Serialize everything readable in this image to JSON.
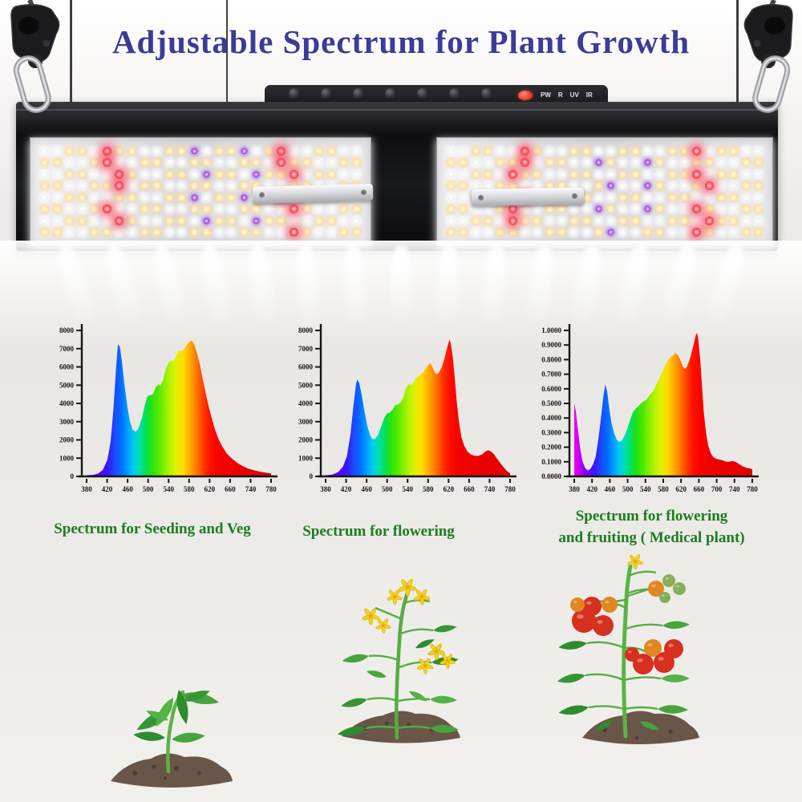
{
  "title": "Adjustable Spectrum for Plant Growth",
  "colors": {
    "title_text": "#3b3c96",
    "caption_text": "#1b7d1f",
    "background": "#eae8e4",
    "fixture_body": "#111113",
    "indicator_red": "#e23522"
  },
  "fixture": {
    "knob_count": 7,
    "control_labels": [
      "PW",
      "R",
      "UV",
      "IR"
    ],
    "hangers": "ratchet rope hangers with carabiners",
    "led_colors": [
      "warm-white",
      "white",
      "red",
      "uv-purple"
    ]
  },
  "illustrations": [
    "seedling-plant",
    "flowering-plant",
    "fruiting-tomato-plant"
  ],
  "chart_data": [
    {
      "type": "area",
      "caption": "Spectrum for Seeding and Veg",
      "ylim": [
        0,
        8000
      ],
      "y_tick_labels": [
        "0",
        "1000",
        "2000",
        "3000",
        "4000",
        "5000",
        "6000",
        "7000",
        "8000"
      ],
      "x_tick_labels": [
        "380",
        "420",
        "460",
        "500",
        "540",
        "580",
        "620",
        "660",
        "740",
        "780"
      ],
      "xlim": [
        380,
        780
      ],
      "points": [
        [
          380,
          60
        ],
        [
          395,
          90
        ],
        [
          405,
          160
        ],
        [
          415,
          350
        ],
        [
          425,
          900
        ],
        [
          432,
          1900
        ],
        [
          438,
          3600
        ],
        [
          444,
          6000
        ],
        [
          448,
          7250
        ],
        [
          452,
          7100
        ],
        [
          456,
          6400
        ],
        [
          462,
          5000
        ],
        [
          468,
          3900
        ],
        [
          474,
          3000
        ],
        [
          480,
          2550
        ],
        [
          486,
          2450
        ],
        [
          492,
          2600
        ],
        [
          500,
          3200
        ],
        [
          506,
          3900
        ],
        [
          512,
          4400
        ],
        [
          518,
          4450
        ],
        [
          524,
          4500
        ],
        [
          530,
          4900
        ],
        [
          536,
          5050
        ],
        [
          540,
          4950
        ],
        [
          546,
          5300
        ],
        [
          552,
          5900
        ],
        [
          558,
          6250
        ],
        [
          564,
          6350
        ],
        [
          568,
          6300
        ],
        [
          572,
          6500
        ],
        [
          578,
          6850
        ],
        [
          582,
          6900
        ],
        [
          586,
          6850
        ],
        [
          592,
          7000
        ],
        [
          598,
          7250
        ],
        [
          604,
          7400
        ],
        [
          608,
          7450
        ],
        [
          614,
          7200
        ],
        [
          620,
          6700
        ],
        [
          626,
          6100
        ],
        [
          632,
          5300
        ],
        [
          638,
          4600
        ],
        [
          644,
          3900
        ],
        [
          650,
          3300
        ],
        [
          658,
          2600
        ],
        [
          666,
          2050
        ],
        [
          674,
          1650
        ],
        [
          684,
          1250
        ],
        [
          694,
          1000
        ],
        [
          706,
          750
        ],
        [
          718,
          570
        ],
        [
          730,
          430
        ],
        [
          744,
          330
        ],
        [
          756,
          260
        ],
        [
          768,
          210
        ],
        [
          780,
          160
        ]
      ]
    },
    {
      "type": "area",
      "caption": "Spectrum for flowering",
      "ylim": [
        0,
        8000
      ],
      "y_tick_labels": [
        "0",
        "1000",
        "2000",
        "3000",
        "4000",
        "5000",
        "6000",
        "7000",
        "8000"
      ],
      "x_tick_labels": [
        "380",
        "420",
        "460",
        "500",
        "540",
        "580",
        "620",
        "660",
        "740",
        "780"
      ],
      "xlim": [
        380,
        780
      ],
      "points": [
        [
          380,
          60
        ],
        [
          395,
          100
        ],
        [
          408,
          250
        ],
        [
          418,
          550
        ],
        [
          426,
          1100
        ],
        [
          434,
          2300
        ],
        [
          440,
          3800
        ],
        [
          446,
          5100
        ],
        [
          449,
          5300
        ],
        [
          453,
          5100
        ],
        [
          458,
          4500
        ],
        [
          464,
          3600
        ],
        [
          470,
          2800
        ],
        [
          476,
          2300
        ],
        [
          481,
          2050
        ],
        [
          487,
          2050
        ],
        [
          493,
          2250
        ],
        [
          500,
          2700
        ],
        [
          507,
          3200
        ],
        [
          513,
          3450
        ],
        [
          519,
          3500
        ],
        [
          525,
          3650
        ],
        [
          531,
          3900
        ],
        [
          537,
          3950
        ],
        [
          543,
          4050
        ],
        [
          549,
          4350
        ],
        [
          554,
          4800
        ],
        [
          558,
          5000
        ],
        [
          562,
          5100
        ],
        [
          566,
          5000
        ],
        [
          571,
          5150
        ],
        [
          576,
          5400
        ],
        [
          581,
          5500
        ],
        [
          587,
          5600
        ],
        [
          593,
          5750
        ],
        [
          599,
          6000
        ],
        [
          604,
          6150
        ],
        [
          608,
          6200
        ],
        [
          613,
          5900
        ],
        [
          618,
          5650
        ],
        [
          622,
          5600
        ],
        [
          627,
          5750
        ],
        [
          632,
          6000
        ],
        [
          637,
          6400
        ],
        [
          642,
          6900
        ],
        [
          646,
          7300
        ],
        [
          649,
          7500
        ],
        [
          652,
          7200
        ],
        [
          656,
          6500
        ],
        [
          660,
          5400
        ],
        [
          664,
          4200
        ],
        [
          669,
          3000
        ],
        [
          675,
          2100
        ],
        [
          681,
          1650
        ],
        [
          688,
          1350
        ],
        [
          695,
          1200
        ],
        [
          703,
          1130
        ],
        [
          711,
          1120
        ],
        [
          719,
          1200
        ],
        [
          726,
          1350
        ],
        [
          732,
          1430
        ],
        [
          738,
          1380
        ],
        [
          744,
          1250
        ],
        [
          751,
          1000
        ],
        [
          758,
          750
        ],
        [
          766,
          500
        ],
        [
          773,
          300
        ],
        [
          780,
          170
        ]
      ]
    },
    {
      "type": "area",
      "caption": "Spectrum for flowering",
      "caption2": "and fruiting ( Medical plant)",
      "ylim": [
        0,
        1.0
      ],
      "y_tick_labels": [
        "0.0000",
        "0.1000",
        "0.2000",
        "0.3000",
        "0.4000",
        "0.5000",
        "0.6000",
        "0.7000",
        "0.8000",
        "0.9000",
        "1.0000"
      ],
      "x_tick_labels": [
        "380",
        "420",
        "460",
        "500",
        "540",
        "580",
        "620",
        "660",
        "700",
        "740",
        "780"
      ],
      "xlim": [
        380,
        780
      ],
      "uv_start": true,
      "points": [
        [
          380,
          0.5
        ],
        [
          384,
          0.44
        ],
        [
          388,
          0.33
        ],
        [
          393,
          0.2
        ],
        [
          398,
          0.11
        ],
        [
          404,
          0.06
        ],
        [
          410,
          0.04
        ],
        [
          416,
          0.05
        ],
        [
          422,
          0.08
        ],
        [
          428,
          0.13
        ],
        [
          434,
          0.25
        ],
        [
          440,
          0.4
        ],
        [
          446,
          0.56
        ],
        [
          450,
          0.63
        ],
        [
          454,
          0.58
        ],
        [
          459,
          0.46
        ],
        [
          464,
          0.36
        ],
        [
          470,
          0.29
        ],
        [
          476,
          0.25
        ],
        [
          481,
          0.235
        ],
        [
          487,
          0.245
        ],
        [
          493,
          0.28
        ],
        [
          500,
          0.33
        ],
        [
          506,
          0.39
        ],
        [
          512,
          0.44
        ],
        [
          518,
          0.465
        ],
        [
          524,
          0.48
        ],
        [
          530,
          0.5
        ],
        [
          536,
          0.515
        ],
        [
          542,
          0.525
        ],
        [
          548,
          0.55
        ],
        [
          553,
          0.57
        ],
        [
          558,
          0.585
        ],
        [
          563,
          0.62
        ],
        [
          568,
          0.65
        ],
        [
          574,
          0.69
        ],
        [
          580,
          0.73
        ],
        [
          586,
          0.77
        ],
        [
          592,
          0.8
        ],
        [
          598,
          0.82
        ],
        [
          604,
          0.835
        ],
        [
          608,
          0.845
        ],
        [
          613,
          0.83
        ],
        [
          618,
          0.8
        ],
        [
          624,
          0.755
        ],
        [
          628,
          0.735
        ],
        [
          633,
          0.75
        ],
        [
          638,
          0.79
        ],
        [
          643,
          0.84
        ],
        [
          648,
          0.9
        ],
        [
          653,
          0.965
        ],
        [
          656,
          0.985
        ],
        [
          659,
          0.93
        ],
        [
          663,
          0.8
        ],
        [
          667,
          0.62
        ],
        [
          671,
          0.44
        ],
        [
          676,
          0.3
        ],
        [
          681,
          0.21
        ],
        [
          687,
          0.155
        ],
        [
          693,
          0.13
        ],
        [
          700,
          0.12
        ],
        [
          707,
          0.115
        ],
        [
          714,
          0.11
        ],
        [
          721,
          0.1
        ],
        [
          728,
          0.1
        ],
        [
          735,
          0.105
        ],
        [
          742,
          0.1
        ],
        [
          750,
          0.085
        ],
        [
          758,
          0.07
        ],
        [
          766,
          0.06
        ],
        [
          773,
          0.055
        ],
        [
          780,
          0.05
        ]
      ]
    }
  ]
}
